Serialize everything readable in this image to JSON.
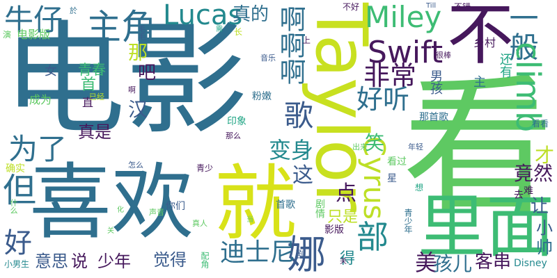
{
  "palette": {
    "dark_purple": "#46185c",
    "indigo": "#3f3f8a",
    "slate_blue": "#3b5b8c",
    "steel_blue": "#2f6f8e",
    "teal": "#23898e",
    "green_teal": "#21a585",
    "green": "#3dbc74",
    "light_green": "#7ad151",
    "lime": "#bddf26",
    "yellow": "#e4e419"
  },
  "words": [
    {
      "text": "电影",
      "color": "#2f6f8e"
    },
    {
      "text": "看",
      "color": "#5ec962"
    },
    {
      "text": "喜欢",
      "color": "#2f6f8e"
    },
    {
      "text": "Taylor",
      "color": "#c8e020"
    },
    {
      "text": "不",
      "color": "#46185c"
    },
    {
      "text": "就",
      "color": "#d8e219"
    },
    {
      "text": "里面",
      "color": "#3dbc74"
    },
    {
      "text": "部",
      "color": "#23898e"
    },
    {
      "text": "娜",
      "color": "#3b5b8c"
    },
    {
      "text": "Lucas",
      "color": "#23898e"
    },
    {
      "text": "Miley",
      "color": "#3dbc74"
    },
    {
      "text": "Swift",
      "color": "#46185c"
    },
    {
      "text": "主角",
      "color": "#2f6f8e"
    },
    {
      "text": "牛仔",
      "color": "#2f6f8e"
    },
    {
      "text": "真的",
      "color": "#2f6f8e"
    },
    {
      "text": "啊啊啊",
      "color": "#2f6f8e"
    },
    {
      "text": "一般",
      "color": "#2f6f8e"
    },
    {
      "text": "非常",
      "color": "#46185c"
    },
    {
      "text": "好听",
      "color": "#2f6f8e"
    },
    {
      "text": "climb",
      "color": "#3dbc74"
    },
    {
      "text": "为了",
      "color": "#2f6f8e"
    },
    {
      "text": "歌",
      "color": "#3b5b8c"
    },
    {
      "text": "Cyrus",
      "color": "#bddf26"
    },
    {
      "text": "变身",
      "color": "#23898e"
    },
    {
      "text": "迪士尼",
      "color": "#2f6f8e"
    },
    {
      "text": "但",
      "color": "#2f6f8e"
    },
    {
      "text": "好",
      "color": "#3b5b8c"
    },
    {
      "text": "那",
      "color": "#bddf26"
    },
    {
      "text": "吧",
      "color": "#46185c"
    },
    {
      "text": "青春",
      "color": "#3dbc74"
    },
    {
      "text": "汉",
      "color": "#3b5b8c"
    },
    {
      "text": "真是",
      "color": "#46185c"
    },
    {
      "text": "竟然",
      "color": "#46185c"
    },
    {
      "text": "笑",
      "color": "#3dbc74"
    },
    {
      "text": "这",
      "color": "#3b5b8c"
    },
    {
      "text": "点",
      "color": "#46185c"
    },
    {
      "text": "才",
      "color": "#bddf26"
    },
    {
      "text": "让",
      "color": "#3b5b8c"
    },
    {
      "text": "小",
      "color": "#3b5b8c"
    },
    {
      "text": "帅",
      "color": "#2f6f8e"
    },
    {
      "text": "美",
      "color": "#46185c"
    },
    {
      "text": "孩儿",
      "color": "#2f6f8e"
    },
    {
      "text": "客串",
      "color": "#46185c"
    },
    {
      "text": "意思",
      "color": "#3b5b8c"
    },
    {
      "text": "说",
      "color": "#46185c"
    },
    {
      "text": "少年",
      "color": "#46185c"
    },
    {
      "text": "觉得",
      "color": "#3b5b8c"
    },
    {
      "text": "只是",
      "color": "#bddf26"
    },
    {
      "text": "得",
      "color": "#23898e"
    },
    {
      "text": "女",
      "color": "#3b5b8c"
    },
    {
      "text": "首",
      "color": "#3dbc74"
    },
    {
      "text": "男孩",
      "color": "#3b5b8c"
    },
    {
      "text": "主",
      "color": "#2f6f8e"
    },
    {
      "text": "还有",
      "color": "#21a585"
    },
    {
      "text": "乡村",
      "color": "#46185c"
    },
    {
      "text": "电影版",
      "color": "#5ec962"
    },
    {
      "text": "成为",
      "color": "#5ec962"
    },
    {
      "text": "粉嫩",
      "color": "#2f6f8e"
    },
    {
      "text": "印象",
      "color": "#21a585"
    },
    {
      "text": "那首歌",
      "color": "#2f6f8e"
    },
    {
      "text": "看看",
      "color": "#2f6f8e"
    },
    {
      "text": "确实",
      "color": "#bddf26"
    },
    {
      "text": "青少",
      "color": "#46185c"
    },
    {
      "text": "看过",
      "color": "#5ec962"
    },
    {
      "text": "星",
      "color": "#3b5b8c"
    },
    {
      "text": "难",
      "color": "#46185c"
    },
    {
      "text": "去",
      "color": "#46185c"
    },
    {
      "text": "Disney",
      "color": "#23898e"
    },
    {
      "text": "你们",
      "color": "#3b5b8c"
    },
    {
      "text": "首歌",
      "color": "#2f6f8e"
    },
    {
      "text": "影版",
      "color": "#46185c"
    },
    {
      "text": "剧情",
      "color": "#5ec962"
    },
    {
      "text": "剧",
      "color": "#3b5b8c"
    },
    {
      "text": "青少年",
      "color": "#2f6f8e"
    },
    {
      "text": "小男生",
      "color": "#23898e"
    },
    {
      "text": "配角",
      "color": "#3dbc74"
    },
    {
      "text": "什么",
      "color": "#5ec962"
    },
    {
      "text": "声音",
      "color": "#5ec962"
    },
    {
      "text": "真人",
      "color": "#5ec962"
    },
    {
      "text": "那么",
      "color": "#46185c"
    },
    {
      "text": "出来",
      "color": "#5ec962"
    },
    {
      "text": "年轻",
      "color": "#3b5b8c"
    },
    {
      "text": "想",
      "color": "#21a585"
    },
    {
      "text": "怎么",
      "color": "#3b5b8c"
    },
    {
      "text": "已经",
      "color": "#bddf26"
    },
    {
      "text": "啊",
      "color": "#46185c"
    },
    {
      "text": "很棒",
      "color": "#46185c"
    },
    {
      "text": "音乐",
      "color": "#3b5b8c"
    },
    {
      "text": "上",
      "color": "#46185c"
    },
    {
      "text": "长",
      "color": "#bddf26"
    },
    {
      "text": "演",
      "color": "#5ec962"
    },
    {
      "text": "毛毛",
      "color": "#3b5b8c"
    },
    {
      "text": "於",
      "color": "#2f6f8e"
    },
    {
      "text": "不好",
      "color": "#46185c"
    },
    {
      "text": "不错",
      "color": "#46185c"
    },
    {
      "text": "Till",
      "color": "#3b5b8c"
    },
    {
      "text": "需",
      "color": "#21a585"
    },
    {
      "text": "直",
      "color": "#46185c"
    },
    {
      "text": "化",
      "color": "#5ec962"
    },
    {
      "text": "关",
      "color": "#5ec962"
    },
    {
      "text": "当",
      "color": "#5ec962"
    },
    {
      "text": "关",
      "color": "#46185c"
    }
  ]
}
